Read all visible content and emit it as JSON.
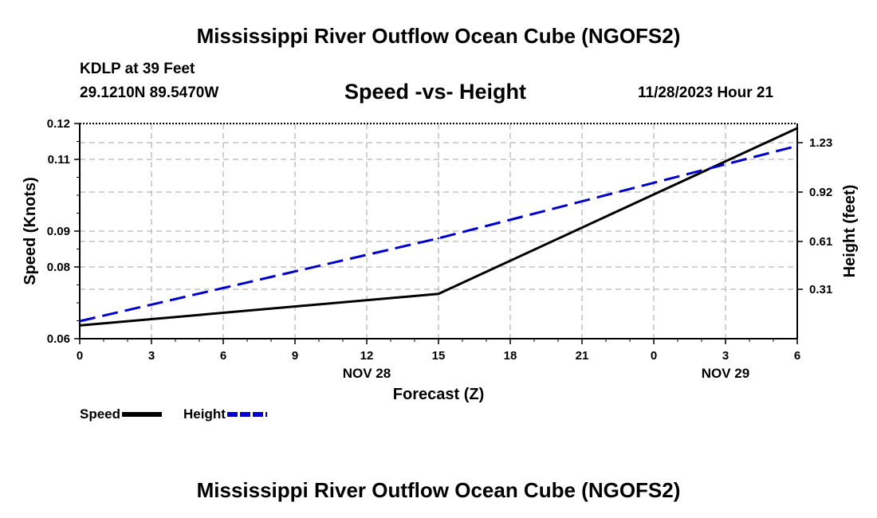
{
  "page": {
    "title_top": "Mississippi River Outflow Ocean Cube (NGOFS2)",
    "title_bottom": "Mississippi River Outflow Ocean Cube (NGOFS2)",
    "station_line": "KDLP at 39 Feet",
    "coords_line": "29.1210N  89.5470W",
    "date_line": "11/28/2023 Hour 21"
  },
  "chart_data": {
    "type": "line",
    "title": "Speed -vs- Height",
    "xlabel": "Forecast (Z)",
    "ylabel": "Speed (Knots)",
    "y2label": "Height (feet)",
    "x_ticks": [
      "0",
      "3",
      "6",
      "9",
      "12",
      "15",
      "18",
      "21",
      "0",
      "3",
      "6"
    ],
    "x_hours": [
      0,
      3,
      6,
      9,
      12,
      15,
      18,
      21,
      24,
      27,
      30
    ],
    "date_labels": [
      {
        "label": "NOV 28",
        "hour": 12
      },
      {
        "label": "NOV 29",
        "hour": 27
      }
    ],
    "xlim": [
      0,
      30
    ],
    "ylim": [
      0.06,
      0.12
    ],
    "y_ticks": [
      "0.06",
      "0.08",
      "0.09",
      "0.11",
      "0.12"
    ],
    "y_tick_values": [
      0.06,
      0.08,
      0.09,
      0.11,
      0.12
    ],
    "y2lim": [
      0.0,
      1.35
    ],
    "y2_ticks": [
      "0.31",
      "0.61",
      "0.92",
      "1.23"
    ],
    "y2_tick_values": [
      0.31,
      0.61,
      0.92,
      1.23
    ],
    "series": [
      {
        "name": "Speed",
        "axis": "left",
        "color": "#000000",
        "dash": "solid",
        "x": [
          0,
          15,
          30
        ],
        "values": [
          0.0637,
          0.0725,
          0.1187
        ]
      },
      {
        "name": "Height",
        "axis": "right",
        "color": "#0000cc",
        "dash": "dashed",
        "x": [
          0,
          15,
          30
        ],
        "values": [
          0.11,
          0.63,
          1.21
        ]
      }
    ],
    "legend": [
      {
        "label": "Speed",
        "color": "#000000"
      },
      {
        "label": "Height",
        "color": "#0000cc"
      }
    ],
    "grid": true
  }
}
